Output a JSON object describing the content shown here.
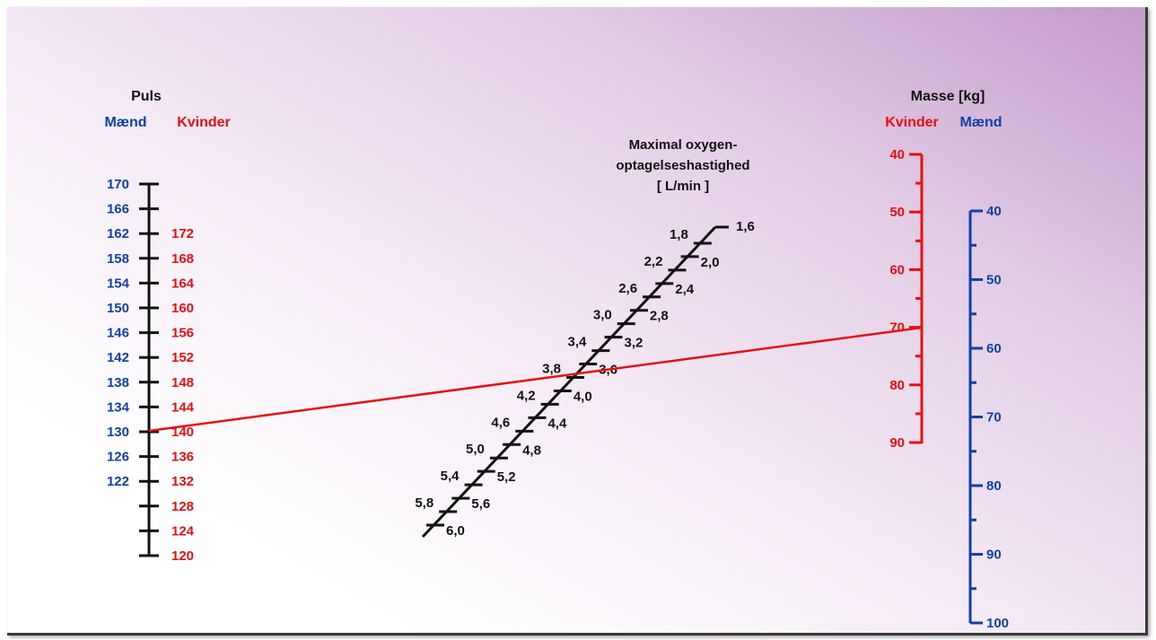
{
  "colors": {
    "men": "#1140a6",
    "women": "#e8100f",
    "scale": "#111111",
    "reading_line": "#e8100f"
  },
  "pulse": {
    "title": "Puls",
    "men_label": "Mænd",
    "women_label": "Kvinder",
    "men_ticks": [
      "170",
      "166",
      "162",
      "158",
      "154",
      "150",
      "146",
      "142",
      "138",
      "134",
      "130",
      "126",
      "122"
    ],
    "women_ticks": [
      "172",
      "168",
      "164",
      "160",
      "156",
      "152",
      "148",
      "144",
      "140",
      "136",
      "132",
      "128",
      "124",
      "120"
    ]
  },
  "vo2": {
    "title_line1": "Maximal oxygen-",
    "title_line2": "optagelseshastighed",
    "title_line3": "[ L/min ]",
    "ticks": [
      "1,6",
      "1,8",
      "2,0",
      "2,2",
      "2,4",
      "2,6",
      "2,8",
      "3,0",
      "3,2",
      "3,4",
      "3,6",
      "3,8",
      "4,0",
      "4,2",
      "4,4",
      "4,6",
      "4,8",
      "5,0",
      "5,2",
      "5,4",
      "5,6",
      "5,8",
      "6,0"
    ]
  },
  "mass": {
    "title": "Masse [kg]",
    "women_label": "Kvinder",
    "men_label": "Mænd",
    "women_ticks": [
      "40",
      "50",
      "60",
      "70",
      "80",
      "90"
    ],
    "men_ticks": [
      "40",
      "50",
      "60",
      "70",
      "80",
      "90",
      "100"
    ]
  },
  "reading_line": {
    "pulse_men": 130,
    "pulse_women": 140,
    "mass_women_kg": 70
  }
}
